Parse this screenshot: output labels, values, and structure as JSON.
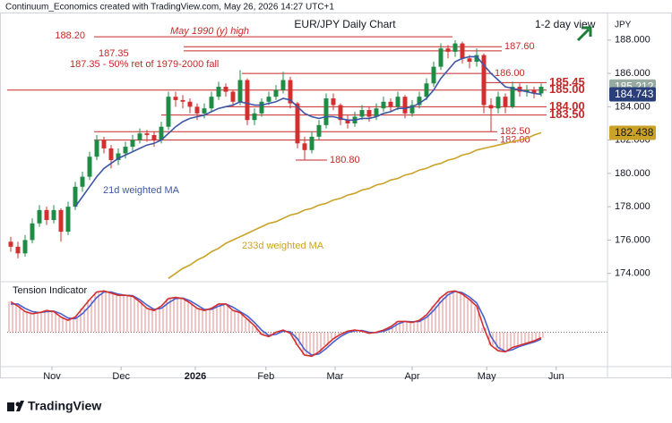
{
  "chart_data": {
    "type": "candlestick",
    "header": "Continuum_Economics created with TradingView.com, May 26, 2026 14:27 UTC+1",
    "title": "EUR/JPY Daily Chart",
    "subtitle": "1-2 day view",
    "y_label": "JPY",
    "logo": "TradingView",
    "up_color": "#1e8c45",
    "down_color": "#d32f2f",
    "level_color": "#c62828",
    "ylim": [
      173.5,
      189.6
    ],
    "yticks": [
      {
        "value": 174,
        "label": "174.000"
      },
      {
        "value": 176,
        "label": "176.000"
      },
      {
        "value": 178,
        "label": "178.000"
      },
      {
        "value": 180,
        "label": "180.000"
      },
      {
        "value": 182,
        "label": "182.000"
      },
      {
        "value": 184,
        "label": "184.000"
      },
      {
        "value": 186,
        "label": "186.000"
      },
      {
        "value": 188,
        "label": "188.000"
      }
    ],
    "xlim": [
      -0.5,
      83.25
    ],
    "xticks": [
      {
        "value": 5.75,
        "label": "Nov"
      },
      {
        "value": 15.4,
        "label": "Dec"
      },
      {
        "value": 25.75,
        "label": "2026"
      },
      {
        "value": 35.6,
        "label": "Feb"
      },
      {
        "value": 45.25,
        "label": "Mar"
      },
      {
        "value": 56,
        "label": "Apr"
      },
      {
        "value": 66.4,
        "label": "May"
      },
      {
        "value": 76.1,
        "label": "Jun"
      }
    ],
    "ohlc": [
      [
        175.9,
        176.2,
        175.3,
        175.6
      ],
      [
        175.6,
        175.9,
        174.9,
        175.2
      ],
      [
        175.2,
        176.3,
        175.0,
        176.0
      ],
      [
        176.0,
        177.3,
        175.8,
        177.0
      ],
      [
        177.0,
        178.1,
        176.8,
        177.8
      ],
      [
        177.8,
        178.0,
        176.9,
        177.2
      ],
      [
        177.2,
        178.1,
        177.0,
        177.8
      ],
      [
        177.8,
        177.9,
        175.9,
        176.5
      ],
      [
        176.5,
        178.3,
        176.3,
        178.0
      ],
      [
        178.0,
        179.5,
        177.8,
        179.2
      ],
      [
        179.2,
        180.1,
        178.9,
        179.8
      ],
      [
        179.8,
        181.3,
        179.6,
        181.0
      ],
      [
        181.0,
        182.3,
        180.8,
        182.0
      ],
      [
        182.0,
        182.2,
        181.2,
        181.5
      ],
      [
        181.5,
        181.7,
        180.3,
        180.8
      ],
      [
        180.8,
        181.5,
        180.5,
        181.2
      ],
      [
        181.2,
        181.9,
        180.9,
        181.6
      ],
      [
        181.6,
        182.3,
        181.3,
        182.0
      ],
      [
        182.0,
        182.7,
        181.8,
        182.4
      ],
      [
        182.4,
        182.6,
        181.9,
        182.3
      ],
      [
        182.3,
        182.5,
        181.6,
        182.0
      ],
      [
        182.0,
        183.1,
        181.8,
        182.8
      ],
      [
        182.8,
        184.9,
        182.6,
        184.6
      ],
      [
        184.6,
        184.9,
        184.0,
        184.4
      ],
      [
        184.4,
        184.7,
        183.9,
        184.3
      ],
      [
        184.3,
        184.5,
        183.6,
        184.0
      ],
      [
        184.0,
        184.2,
        183.2,
        183.6
      ],
      [
        183.6,
        184.2,
        183.3,
        183.9
      ],
      [
        183.9,
        184.9,
        183.7,
        184.6
      ],
      [
        184.6,
        185.5,
        184.4,
        185.2
      ],
      [
        185.2,
        185.4,
        184.6,
        184.9
      ],
      [
        184.9,
        185.0,
        184.0,
        184.3
      ],
      [
        184.3,
        186.2,
        184.1,
        185.6
      ],
      [
        185.6,
        185.7,
        182.9,
        183.2
      ],
      [
        183.2,
        183.9,
        182.9,
        183.6
      ],
      [
        183.6,
        184.5,
        183.4,
        184.3
      ],
      [
        184.3,
        184.9,
        184.1,
        184.6
      ],
      [
        184.6,
        185.3,
        184.4,
        185.0
      ],
      [
        185.0,
        186.1,
        184.8,
        185.6
      ],
      [
        185.6,
        185.8,
        183.9,
        184.2
      ],
      [
        184.2,
        184.3,
        181.5,
        181.8
      ],
      [
        181.8,
        182.2,
        180.8,
        181.4
      ],
      [
        181.4,
        182.5,
        181.2,
        182.2
      ],
      [
        182.2,
        183.2,
        182.0,
        182.9
      ],
      [
        182.9,
        184.8,
        182.7,
        184.5
      ],
      [
        184.5,
        184.8,
        183.8,
        184.1
      ],
      [
        184.1,
        184.2,
        182.9,
        183.2
      ],
      [
        183.2,
        183.5,
        182.7,
        183.0
      ],
      [
        183.0,
        183.7,
        182.8,
        183.4
      ],
      [
        183.4,
        184.1,
        183.2,
        183.8
      ],
      [
        183.8,
        184.0,
        183.1,
        183.4
      ],
      [
        183.4,
        184.2,
        183.2,
        183.9
      ],
      [
        183.9,
        184.6,
        183.7,
        184.3
      ],
      [
        184.3,
        184.5,
        183.7,
        184.0
      ],
      [
        184.0,
        184.9,
        183.8,
        184.6
      ],
      [
        184.6,
        184.7,
        183.3,
        183.6
      ],
      [
        183.6,
        184.4,
        183.4,
        184.1
      ],
      [
        184.1,
        184.9,
        183.9,
        184.6
      ],
      [
        184.6,
        185.7,
        184.4,
        185.4
      ],
      [
        185.4,
        186.7,
        185.2,
        186.4
      ],
      [
        186.4,
        187.8,
        186.2,
        187.5
      ],
      [
        187.5,
        187.7,
        186.9,
        187.3
      ],
      [
        187.3,
        188.0,
        187.0,
        187.8
      ],
      [
        187.8,
        187.9,
        186.6,
        186.9
      ],
      [
        186.9,
        187.1,
        186.3,
        186.7
      ],
      [
        186.7,
        187.5,
        186.4,
        187.1
      ],
      [
        187.1,
        187.2,
        183.6,
        184.1
      ],
      [
        184.1,
        184.5,
        182.5,
        183.9
      ],
      [
        183.9,
        184.9,
        183.6,
        184.6
      ],
      [
        184.6,
        184.8,
        183.6,
        184.0
      ],
      [
        184.0,
        185.5,
        183.9,
        185.2
      ],
      [
        185.2,
        185.4,
        184.6,
        184.9
      ],
      [
        184.9,
        185.3,
        184.6,
        185.0
      ],
      [
        185.0,
        185.2,
        184.5,
        184.8
      ],
      [
        184.8,
        185.4,
        184.6,
        185.2
      ]
    ],
    "series": [
      {
        "name": "21d weighted MA",
        "color": "#3d56a6",
        "values": [
          null,
          null,
          null,
          null,
          null,
          null,
          null,
          null,
          null,
          178.0,
          178.6,
          179.2,
          179.8,
          180.3,
          180.6,
          180.9,
          181.1,
          181.3,
          181.5,
          181.7,
          181.8,
          182.0,
          182.4,
          182.8,
          183.1,
          183.3,
          183.4,
          183.5,
          183.7,
          183.9,
          184.0,
          184.1,
          184.3,
          184.2,
          184.1,
          184.1,
          184.2,
          184.3,
          184.5,
          184.4,
          184.0,
          183.6,
          183.4,
          183.3,
          183.4,
          183.4,
          183.3,
          183.2,
          183.2,
          183.3,
          183.3,
          183.4,
          183.6,
          183.7,
          183.9,
          183.9,
          184.0,
          184.2,
          184.5,
          185.0,
          185.7,
          186.2,
          186.7,
          186.9,
          187.0,
          187.0,
          186.5,
          186.0,
          185.6,
          185.2,
          185.1,
          185.0,
          184.9,
          184.8,
          184.74
        ]
      },
      {
        "name": "233d weighted MA",
        "color": "#c9a227",
        "values": [
          null,
          null,
          null,
          null,
          null,
          null,
          null,
          null,
          null,
          null,
          null,
          null,
          null,
          null,
          null,
          null,
          null,
          null,
          null,
          null,
          null,
          null,
          173.7,
          174.0,
          174.3,
          174.5,
          174.8,
          175.0,
          175.3,
          175.5,
          175.8,
          176.0,
          176.2,
          176.4,
          176.6,
          176.8,
          177.0,
          177.1,
          177.3,
          177.5,
          177.6,
          177.8,
          177.9,
          178.1,
          178.2,
          178.4,
          178.5,
          178.7,
          178.8,
          179.0,
          179.1,
          179.3,
          179.4,
          179.6,
          179.7,
          179.9,
          180.0,
          180.2,
          180.3,
          180.5,
          180.6,
          180.8,
          180.9,
          181.1,
          181.2,
          181.4,
          181.5,
          181.6,
          181.7,
          181.8,
          181.9,
          182.0,
          182.1,
          182.3,
          182.44
        ]
      }
    ],
    "price_tags": [
      {
        "value": 185.212,
        "color": "#98aba3"
      },
      {
        "value": 184.743,
        "color": "#2a3f7a"
      },
      {
        "value": 182.438,
        "color": "#c9a227"
      }
    ],
    "levels": [
      {
        "value": 188.2,
        "label": "188.20"
      },
      {
        "value": 187.6,
        "label": "187.60"
      },
      {
        "value": 187.35,
        "label": "187.35"
      },
      {
        "value": 186,
        "label": "186.00"
      },
      {
        "value": 185.45,
        "label": "185.45"
      },
      {
        "value": 185,
        "label": "185.00"
      },
      {
        "value": 184,
        "label": "184.00"
      },
      {
        "value": 183.5,
        "label": "183.50"
      },
      {
        "value": 182.5,
        "label": "182.50"
      },
      {
        "value": 182,
        "label": "182.00"
      },
      {
        "value": 180.8,
        "label": "180.80"
      }
    ],
    "annotations": [
      "May 1990 (y) high",
      "187.35 - 50% ret of 1979-2000 fall"
    ],
    "indicator": {
      "name": "Tension Indicator",
      "ylim": [
        -1.5,
        2.2
      ],
      "color": "#d32f2f",
      "signal_color": "#4a5fd0",
      "values": [
        1.4,
        1.2,
        0.95,
        0.85,
        0.9,
        1.0,
        0.95,
        0.7,
        0.55,
        0.7,
        1.1,
        1.5,
        1.85,
        1.9,
        1.8,
        1.7,
        1.7,
        1.65,
        1.4,
        1.1,
        1.0,
        1.2,
        1.55,
        1.6,
        1.55,
        1.35,
        1.1,
        1.0,
        1.1,
        1.3,
        1.3,
        1.0,
        0.9,
        0.6,
        0.3,
        -0.1,
        -0.2,
        0.0,
        0.1,
        -0.05,
        -0.6,
        -1.05,
        -1.1,
        -0.9,
        -0.6,
        -0.3,
        -0.1,
        0.05,
        0.1,
        0.05,
        -0.05,
        0.0,
        0.1,
        0.25,
        0.5,
        0.5,
        0.45,
        0.55,
        0.8,
        1.2,
        1.6,
        1.85,
        1.9,
        1.75,
        1.5,
        1.2,
        0.2,
        -0.6,
        -0.85,
        -0.9,
        -0.7,
        -0.6,
        -0.5,
        -0.4,
        -0.25
      ],
      "signal": [
        1.3,
        1.3,
        1.1,
        0.95,
        0.9,
        0.95,
        0.97,
        0.85,
        0.65,
        0.62,
        0.85,
        1.2,
        1.6,
        1.85,
        1.85,
        1.75,
        1.7,
        1.68,
        1.5,
        1.25,
        1.05,
        1.1,
        1.35,
        1.55,
        1.57,
        1.45,
        1.25,
        1.05,
        1.05,
        1.2,
        1.3,
        1.15,
        0.95,
        0.75,
        0.45,
        0.1,
        -0.15,
        -0.1,
        0.05,
        0.02,
        -0.3,
        -0.8,
        -1.05,
        -1.0,
        -0.75,
        -0.45,
        -0.2,
        -0.02,
        0.07,
        0.08,
        0.0,
        -0.02,
        0.05,
        0.17,
        0.38,
        0.5,
        0.48,
        0.5,
        0.68,
        1.0,
        1.4,
        1.72,
        1.88,
        1.82,
        1.62,
        1.35,
        0.7,
        -0.2,
        -0.7,
        -0.88,
        -0.8,
        -0.65,
        -0.55,
        -0.45,
        -0.32
      ]
    }
  }
}
